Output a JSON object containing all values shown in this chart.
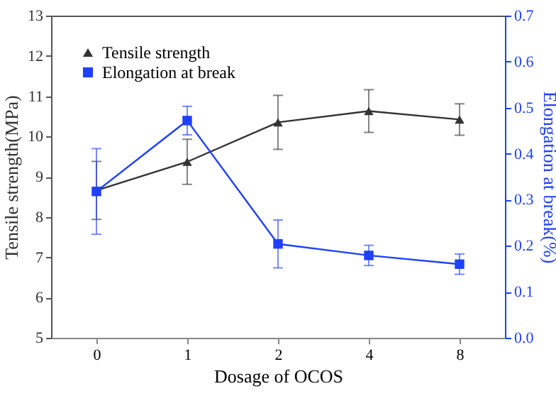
{
  "chart_data": {
    "type": "line",
    "xlabel": "Dosage of OCOS",
    "ylabel": "Tensile strength(MPa)",
    "y2label": "Elongation at break(%)",
    "categories": [
      "0",
      "1",
      "2",
      "4",
      "8"
    ],
    "series": [
      {
        "name": "Tensile strength",
        "color": "#333333",
        "marker": "triangle",
        "values": [
          8.66,
          9.37,
          10.35,
          10.63,
          10.42
        ],
        "errors": [
          0.72,
          0.56,
          0.67,
          0.53,
          0.39
        ]
      },
      {
        "name": "Elongation at break",
        "color": "#2040ff",
        "marker": "square",
        "axis": "y2",
        "values": [
          0.318,
          0.472,
          0.204,
          0.179,
          0.16
        ],
        "errors": [
          0.093,
          0.031,
          0.052,
          0.022,
          0.022
        ]
      }
    ],
    "ylim": [
      5,
      13
    ],
    "yticks": [
      5,
      6,
      7,
      8,
      9,
      10,
      11,
      12,
      13
    ],
    "y2lim": [
      0,
      0.7
    ],
    "y2ticks": [
      {
        "value": 0,
        "label": "0.0"
      },
      0.1,
      0.2,
      0.3,
      0.4,
      0.5,
      0.6,
      0.7
    ],
    "legend": "top left",
    "grid": false
  }
}
